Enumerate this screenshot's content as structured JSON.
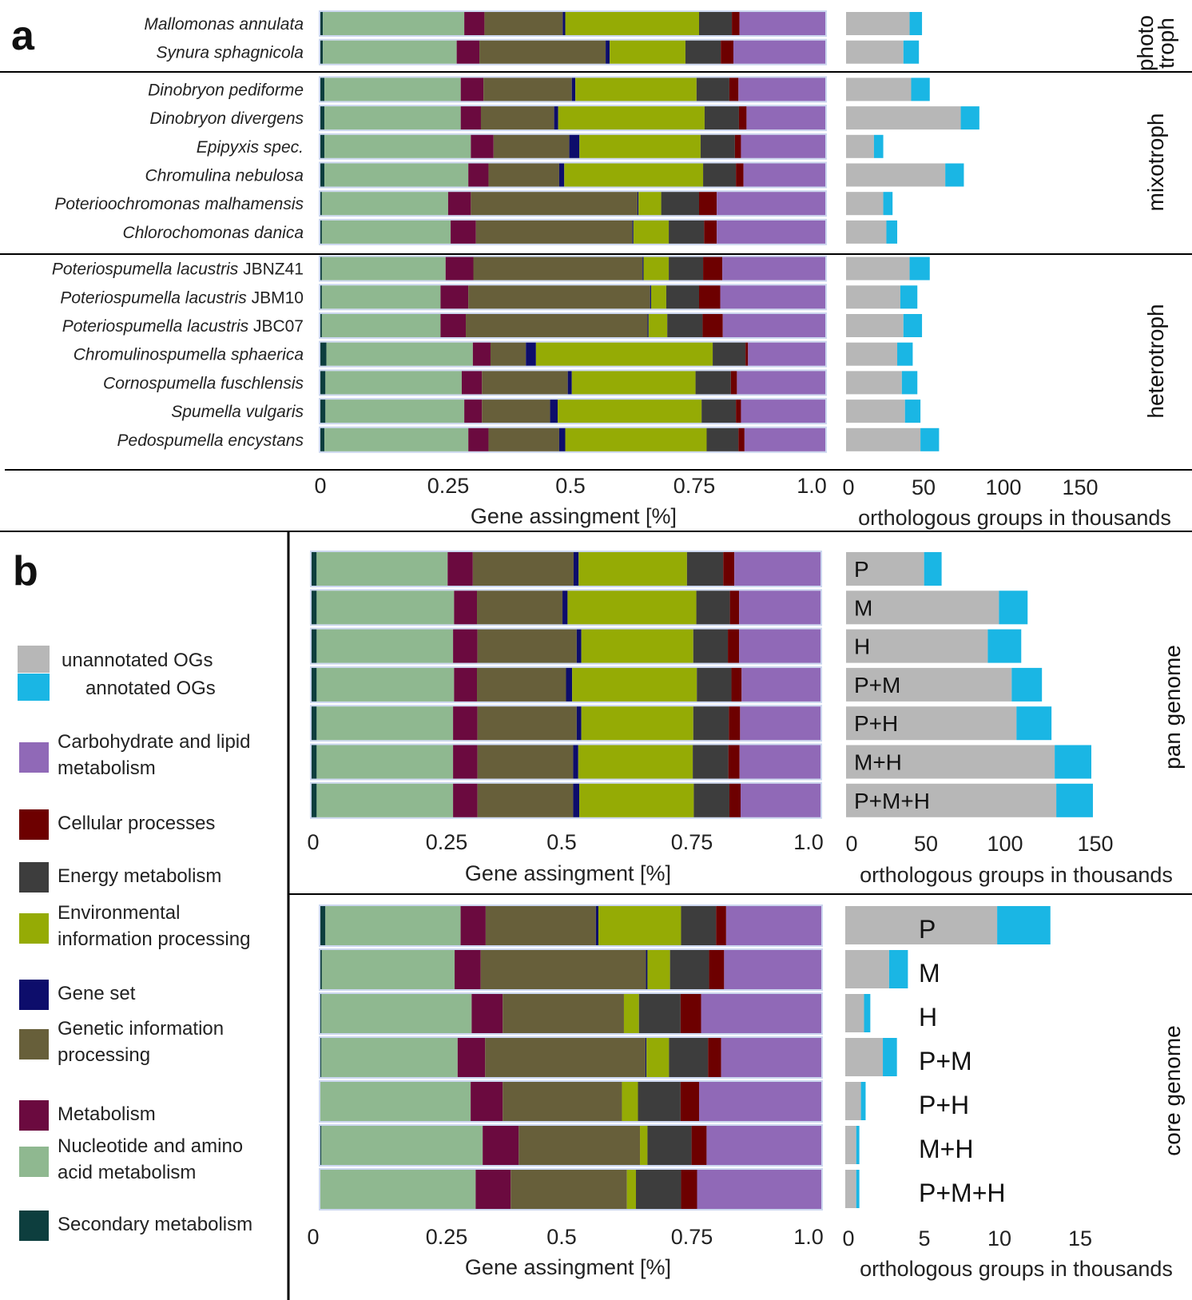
{
  "colors": {
    "nucleotide": "#8fb890",
    "metabolism": "#6b0a3f",
    "genetic": "#675f3a",
    "geneset": "#0d0d6b",
    "environmental": "#95ab05",
    "energy": "#3d3d3d",
    "cellular": "#6d0000",
    "carbohydrate": "#9069b7",
    "secondary": "#0d3e3e",
    "unannotated": "#b7b7b7",
    "annotated": "#1ab6e4",
    "bar_border": "#ccd7ef"
  },
  "categories_order": [
    "secondary",
    "nucleotide",
    "metabolism",
    "genetic",
    "geneset",
    "environmental",
    "energy",
    "cellular",
    "carbohydrate"
  ],
  "legend": {
    "og": [
      {
        "key": "unannotated",
        "label": "unannotated OGs"
      },
      {
        "key": "annotated",
        "label": "annotated OGs"
      }
    ],
    "categories": [
      {
        "key": "carbohydrate",
        "lines": [
          "Carbohydrate and lipid",
          "metabolism"
        ]
      },
      {
        "key": "cellular",
        "lines": [
          "Cellular processes"
        ]
      },
      {
        "key": "energy",
        "lines": [
          "Energy metabolism"
        ]
      },
      {
        "key": "environmental",
        "lines": [
          "Environmental",
          "information processing"
        ]
      },
      {
        "key": "geneset",
        "lines": [
          "Gene set"
        ]
      },
      {
        "key": "genetic",
        "lines": [
          "Genetic information",
          "processing"
        ]
      },
      {
        "key": "metabolism",
        "lines": [
          "Metabolism"
        ]
      },
      {
        "key": "nucleotide",
        "lines": [
          "Nucleotide and amino",
          "acid metabolism"
        ]
      },
      {
        "key": "secondary",
        "lines": [
          "Secondary metabolism"
        ]
      }
    ]
  },
  "panel_labels": {
    "a": "a",
    "b": "b"
  },
  "chart_data": [
    {
      "id": "a-stacked",
      "type": "bar",
      "orientation": "horizontal-stacked",
      "xlabel": "Gene assingment [%]",
      "xlim": [
        0,
        1.0
      ],
      "ticks": [
        "0",
        "0.25",
        "0.5",
        "0.75",
        "1.0"
      ],
      "groups": [
        {
          "label": "photo troph",
          "label_lines": [
            "photo",
            "troph"
          ],
          "rows": [
            0,
            1
          ]
        },
        {
          "label": "mixotroph",
          "label_lines": [
            "mixotroph"
          ],
          "rows": [
            2,
            3,
            4,
            5,
            6,
            7
          ]
        },
        {
          "label": "heterotroph",
          "label_lines": [
            "heterotroph"
          ],
          "rows": [
            8,
            9,
            10,
            11,
            12,
            13,
            14
          ]
        }
      ],
      "rows": [
        {
          "name": "Mallomonas annulata",
          "strain": "",
          "values": {
            "secondary": 0.005,
            "nucleotide": 0.28,
            "metabolism": 0.04,
            "genetic": 0.155,
            "geneset": 0.005,
            "environmental": 0.265,
            "energy": 0.065,
            "cellular": 0.015,
            "carbohydrate": 0.17
          }
        },
        {
          "name": "Synura sphagnicola",
          "strain": "",
          "values": {
            "secondary": 0.005,
            "nucleotide": 0.265,
            "metabolism": 0.045,
            "genetic": 0.25,
            "geneset": 0.008,
            "environmental": 0.15,
            "energy": 0.07,
            "cellular": 0.025,
            "carbohydrate": 0.182
          }
        },
        {
          "name": "Dinobryon pediforme",
          "strain": "",
          "values": {
            "secondary": 0.008,
            "nucleotide": 0.27,
            "metabolism": 0.045,
            "genetic": 0.175,
            "geneset": 0.007,
            "environmental": 0.24,
            "energy": 0.065,
            "cellular": 0.018,
            "carbohydrate": 0.172
          }
        },
        {
          "name": "Dinobryon divergens",
          "strain": "",
          "values": {
            "secondary": 0.008,
            "nucleotide": 0.27,
            "metabolism": 0.04,
            "genetic": 0.145,
            "geneset": 0.008,
            "environmental": 0.29,
            "energy": 0.068,
            "cellular": 0.015,
            "carbohydrate": 0.156
          }
        },
        {
          "name": "Epipyxis spec.",
          "strain": "",
          "values": {
            "secondary": 0.008,
            "nucleotide": 0.29,
            "metabolism": 0.045,
            "genetic": 0.15,
            "geneset": 0.02,
            "environmental": 0.24,
            "energy": 0.068,
            "cellular": 0.012,
            "carbohydrate": 0.167
          }
        },
        {
          "name": "Chromulina nebulosa",
          "strain": "",
          "values": {
            "secondary": 0.008,
            "nucleotide": 0.285,
            "metabolism": 0.04,
            "genetic": 0.14,
            "geneset": 0.01,
            "environmental": 0.275,
            "energy": 0.065,
            "cellular": 0.015,
            "carbohydrate": 0.162
          }
        },
        {
          "name": "Poterioochromonas malhamensis",
          "strain": "",
          "values": {
            "secondary": 0.003,
            "nucleotide": 0.25,
            "metabolism": 0.045,
            "genetic": 0.33,
            "geneset": 0.002,
            "environmental": 0.045,
            "energy": 0.075,
            "cellular": 0.035,
            "carbohydrate": 0.215
          }
        },
        {
          "name": "Chlorochomonas danica",
          "strain": "",
          "values": {
            "secondary": 0.003,
            "nucleotide": 0.255,
            "metabolism": 0.05,
            "genetic": 0.31,
            "geneset": 0.002,
            "environmental": 0.07,
            "energy": 0.07,
            "cellular": 0.025,
            "carbohydrate": 0.215
          }
        },
        {
          "name": "Poteriospumella lacustris",
          "strain": "JBNZ41",
          "values": {
            "secondary": 0.003,
            "nucleotide": 0.245,
            "metabolism": 0.055,
            "genetic": 0.335,
            "geneset": 0.002,
            "environmental": 0.05,
            "energy": 0.068,
            "cellular": 0.038,
            "carbohydrate": 0.204
          }
        },
        {
          "name": "Poteriospumella lacustris",
          "strain": "JBM10",
          "values": {
            "secondary": 0.003,
            "nucleotide": 0.235,
            "metabolism": 0.055,
            "genetic": 0.36,
            "geneset": 0.002,
            "environmental": 0.03,
            "energy": 0.065,
            "cellular": 0.042,
            "carbohydrate": 0.208
          }
        },
        {
          "name": "Poteriospumella lacustris",
          "strain": "JBC07",
          "values": {
            "secondary": 0.003,
            "nucleotide": 0.235,
            "metabolism": 0.05,
            "genetic": 0.36,
            "geneset": 0.002,
            "environmental": 0.037,
            "energy": 0.07,
            "cellular": 0.04,
            "carbohydrate": 0.203
          }
        },
        {
          "name": "Chromulinospumella sphaerica",
          "strain": "",
          "values": {
            "secondary": 0.012,
            "nucleotide": 0.29,
            "metabolism": 0.035,
            "genetic": 0.07,
            "geneset": 0.02,
            "environmental": 0.35,
            "energy": 0.065,
            "cellular": 0.005,
            "carbohydrate": 0.153
          }
        },
        {
          "name": "Cornospumella fuschlensis",
          "strain": "",
          "values": {
            "secondary": 0.01,
            "nucleotide": 0.27,
            "metabolism": 0.04,
            "genetic": 0.17,
            "geneset": 0.008,
            "environmental": 0.245,
            "energy": 0.07,
            "cellular": 0.012,
            "carbohydrate": 0.175
          }
        },
        {
          "name": "Spumella vulgaris",
          "strain": "",
          "values": {
            "secondary": 0.01,
            "nucleotide": 0.275,
            "metabolism": 0.035,
            "genetic": 0.135,
            "geneset": 0.015,
            "environmental": 0.285,
            "energy": 0.068,
            "cellular": 0.01,
            "carbohydrate": 0.167
          }
        },
        {
          "name": "Pedospumella encystans",
          "strain": "",
          "values": {
            "secondary": 0.008,
            "nucleotide": 0.285,
            "metabolism": 0.04,
            "genetic": 0.14,
            "geneset": 0.012,
            "environmental": 0.28,
            "energy": 0.063,
            "cellular": 0.012,
            "carbohydrate": 0.16
          }
        }
      ]
    },
    {
      "id": "a-og",
      "type": "bar",
      "orientation": "horizontal-stacked",
      "xlabel": "orthologous groups in thousands",
      "xlim": [
        0,
        150
      ],
      "ticks": [
        "0",
        "50",
        "100",
        "150"
      ],
      "series_keys": [
        "unannotated",
        "annotated"
      ],
      "rows": [
        {
          "unannotated": 41,
          "annotated": 8
        },
        {
          "unannotated": 37,
          "annotated": 10
        },
        {
          "unannotated": 42,
          "annotated": 12
        },
        {
          "unannotated": 74,
          "annotated": 12
        },
        {
          "unannotated": 18,
          "annotated": 6
        },
        {
          "unannotated": 64,
          "annotated": 12
        },
        {
          "unannotated": 24,
          "annotated": 6
        },
        {
          "unannotated": 26,
          "annotated": 7
        },
        {
          "unannotated": 41,
          "annotated": 13
        },
        {
          "unannotated": 35,
          "annotated": 11
        },
        {
          "unannotated": 37,
          "annotated": 12
        },
        {
          "unannotated": 33,
          "annotated": 10
        },
        {
          "unannotated": 36,
          "annotated": 10
        },
        {
          "unannotated": 38,
          "annotated": 10
        },
        {
          "unannotated": 48,
          "annotated": 12
        }
      ]
    },
    {
      "id": "b-pan-stacked",
      "type": "bar",
      "orientation": "horizontal-stacked",
      "xlabel": "Gene assingment [%]",
      "xlim": [
        0,
        1.0
      ],
      "ticks": [
        "0",
        "0.25",
        "0.5",
        "0.75",
        "1.0"
      ],
      "rows": [
        {
          "secondary": 0.01,
          "nucleotide": 0.26,
          "metabolism": 0.05,
          "genetic": 0.2,
          "geneset": 0.01,
          "environmental": 0.215,
          "energy": 0.072,
          "cellular": 0.022,
          "carbohydrate": 0.171
        },
        {
          "secondary": 0.01,
          "nucleotide": 0.27,
          "metabolism": 0.045,
          "genetic": 0.168,
          "geneset": 0.01,
          "environmental": 0.253,
          "energy": 0.066,
          "cellular": 0.018,
          "carbohydrate": 0.16
        },
        {
          "secondary": 0.01,
          "nucleotide": 0.268,
          "metabolism": 0.048,
          "genetic": 0.195,
          "geneset": 0.009,
          "environmental": 0.22,
          "energy": 0.068,
          "cellular": 0.022,
          "carbohydrate": 0.16
        },
        {
          "secondary": 0.01,
          "nucleotide": 0.27,
          "metabolism": 0.045,
          "genetic": 0.175,
          "geneset": 0.012,
          "environmental": 0.245,
          "energy": 0.068,
          "cellular": 0.02,
          "carbohydrate": 0.155
        },
        {
          "secondary": 0.01,
          "nucleotide": 0.268,
          "metabolism": 0.048,
          "genetic": 0.195,
          "geneset": 0.009,
          "environmental": 0.22,
          "energy": 0.07,
          "cellular": 0.022,
          "carbohydrate": 0.158
        },
        {
          "secondary": 0.01,
          "nucleotide": 0.268,
          "metabolism": 0.048,
          "genetic": 0.188,
          "geneset": 0.01,
          "environmental": 0.225,
          "energy": 0.07,
          "cellular": 0.022,
          "carbohydrate": 0.159
        },
        {
          "secondary": 0.01,
          "nucleotide": 0.268,
          "metabolism": 0.048,
          "genetic": 0.188,
          "geneset": 0.012,
          "environmental": 0.225,
          "energy": 0.07,
          "cellular": 0.022,
          "carbohydrate": 0.157
        }
      ]
    },
    {
      "id": "b-pan-og",
      "type": "bar",
      "orientation": "horizontal-stacked",
      "xlabel": "orthologous groups in thousands",
      "xlim": [
        0,
        150
      ],
      "ticks": [
        "0",
        "50",
        "100",
        "150"
      ],
      "group_label": "pan genome",
      "series_keys": [
        "unannotated",
        "annotated"
      ],
      "rows": [
        {
          "label": "P",
          "unannotated": 49,
          "annotated": 11
        },
        {
          "label": "M",
          "unannotated": 96,
          "annotated": 18
        },
        {
          "label": "H",
          "unannotated": 89,
          "annotated": 21
        },
        {
          "label": "P+M",
          "unannotated": 104,
          "annotated": 19
        },
        {
          "label": "P+H",
          "unannotated": 107,
          "annotated": 22
        },
        {
          "label": "M+H",
          "unannotated": 131,
          "annotated": 23
        },
        {
          "label": "P+M+H",
          "unannotated": 132,
          "annotated": 23
        }
      ]
    },
    {
      "id": "b-core-stacked",
      "type": "bar",
      "orientation": "horizontal-stacked",
      "xlabel": "Gene assingment [%]",
      "xlim": [
        0,
        1.0
      ],
      "ticks": [
        "0",
        "0.25",
        "0.5",
        "0.75",
        "1.0"
      ],
      "rows": [
        {
          "secondary": 0.01,
          "nucleotide": 0.27,
          "metabolism": 0.05,
          "genetic": 0.22,
          "geneset": 0.005,
          "environmental": 0.165,
          "energy": 0.07,
          "cellular": 0.02,
          "carbohydrate": 0.19
        },
        {
          "secondary": 0.003,
          "nucleotide": 0.265,
          "metabolism": 0.052,
          "genetic": 0.33,
          "geneset": 0.003,
          "environmental": 0.045,
          "energy": 0.078,
          "cellular": 0.03,
          "carbohydrate": 0.194
        },
        {
          "secondary": 0.002,
          "nucleotide": 0.3,
          "metabolism": 0.062,
          "genetic": 0.242,
          "geneset": 0.0,
          "environmental": 0.03,
          "energy": 0.083,
          "cellular": 0.041,
          "carbohydrate": 0.24
        },
        {
          "secondary": 0.002,
          "nucleotide": 0.272,
          "metabolism": 0.055,
          "genetic": 0.32,
          "geneset": 0.002,
          "environmental": 0.045,
          "energy": 0.078,
          "cellular": 0.026,
          "carbohydrate": 0.2
        },
        {
          "secondary": 0.0,
          "nucleotide": 0.3,
          "metabolism": 0.064,
          "genetic": 0.238,
          "geneset": 0.0,
          "environmental": 0.032,
          "energy": 0.085,
          "cellular": 0.037,
          "carbohydrate": 0.244
        },
        {
          "secondary": 0.002,
          "nucleotide": 0.322,
          "metabolism": 0.072,
          "genetic": 0.242,
          "geneset": 0.0,
          "environmental": 0.015,
          "energy": 0.088,
          "cellular": 0.03,
          "carbohydrate": 0.229
        },
        {
          "secondary": 0.0,
          "nucleotide": 0.31,
          "metabolism": 0.07,
          "genetic": 0.232,
          "geneset": 0.0,
          "environmental": 0.018,
          "energy": 0.09,
          "cellular": 0.032,
          "carbohydrate": 0.248
        }
      ]
    },
    {
      "id": "b-core-og",
      "type": "bar",
      "orientation": "horizontal-stacked",
      "xlabel": "orthologous groups in thousands",
      "xlim": [
        0,
        15
      ],
      "ticks": [
        "0",
        "5",
        "10",
        "15"
      ],
      "group_label": "core genome",
      "series_keys": [
        "unannotated",
        "annotated"
      ],
      "rows": [
        {
          "label": "P",
          "unannotated": 9.7,
          "annotated": 3.4
        },
        {
          "label": "M",
          "unannotated": 2.8,
          "annotated": 1.2
        },
        {
          "label": "H",
          "unannotated": 1.2,
          "annotated": 0.4
        },
        {
          "label": "P+M",
          "unannotated": 2.4,
          "annotated": 0.9
        },
        {
          "label": "P+H",
          "unannotated": 1.0,
          "annotated": 0.3
        },
        {
          "label": "M+H",
          "unannotated": 0.7,
          "annotated": 0.2
        },
        {
          "label": "P+M+H",
          "unannotated": 0.7,
          "annotated": 0.2
        }
      ]
    }
  ]
}
